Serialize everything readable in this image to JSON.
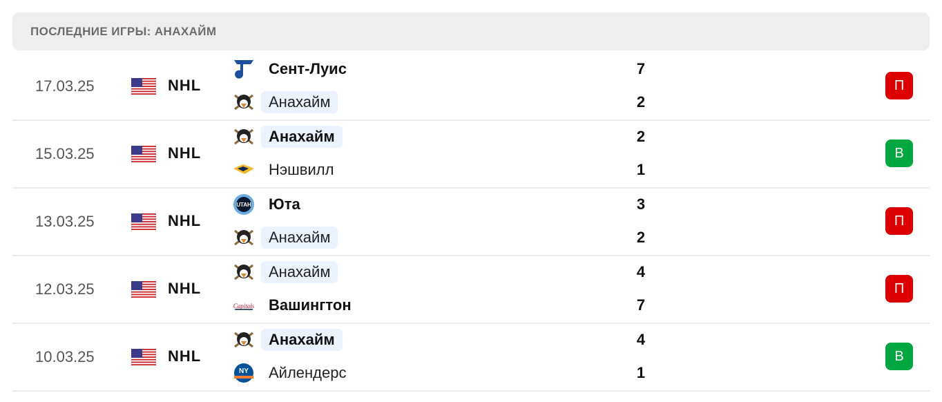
{
  "header": {
    "title": "ПОСЛЕДНИЕ ИГРЫ: АНАХАЙМ"
  },
  "colors": {
    "loss": "#dd0000",
    "win": "#00a83f",
    "highlight": "#eaf3ff"
  },
  "games": [
    {
      "date": "17.03.25",
      "league": "NHL",
      "country": "usa-flag",
      "home": {
        "name": "Сент-Луис",
        "score": "7",
        "logo": "blues-logo",
        "bold": true,
        "hl": false
      },
      "away": {
        "name": "Анахайм",
        "score": "2",
        "logo": "ducks-logo",
        "bold": false,
        "hl": true
      },
      "result": "П",
      "result_type": "loss"
    },
    {
      "date": "15.03.25",
      "league": "NHL",
      "country": "usa-flag",
      "home": {
        "name": "Анахайм",
        "score": "2",
        "logo": "ducks-logo",
        "bold": true,
        "hl": true
      },
      "away": {
        "name": "Нэшвилл",
        "score": "1",
        "logo": "predators-logo",
        "bold": false,
        "hl": false
      },
      "result": "В",
      "result_type": "win"
    },
    {
      "date": "13.03.25",
      "league": "NHL",
      "country": "usa-flag",
      "home": {
        "name": "Юта",
        "score": "3",
        "logo": "utah-logo",
        "bold": true,
        "hl": false
      },
      "away": {
        "name": "Анахайм",
        "score": "2",
        "logo": "ducks-logo",
        "bold": false,
        "hl": true
      },
      "result": "П",
      "result_type": "loss"
    },
    {
      "date": "12.03.25",
      "league": "NHL",
      "country": "usa-flag",
      "home": {
        "name": "Анахайм",
        "score": "4",
        "logo": "ducks-logo",
        "bold": false,
        "hl": true
      },
      "away": {
        "name": "Вашингтон",
        "score": "7",
        "logo": "capitals-logo",
        "bold": true,
        "hl": false
      },
      "result": "П",
      "result_type": "loss"
    },
    {
      "date": "10.03.25",
      "league": "NHL",
      "country": "usa-flag",
      "home": {
        "name": "Анахайм",
        "score": "4",
        "logo": "ducks-logo",
        "bold": true,
        "hl": true
      },
      "away": {
        "name": "Айлендерс",
        "score": "1",
        "logo": "islanders-logo",
        "bold": false,
        "hl": false
      },
      "result": "В",
      "result_type": "win"
    }
  ]
}
